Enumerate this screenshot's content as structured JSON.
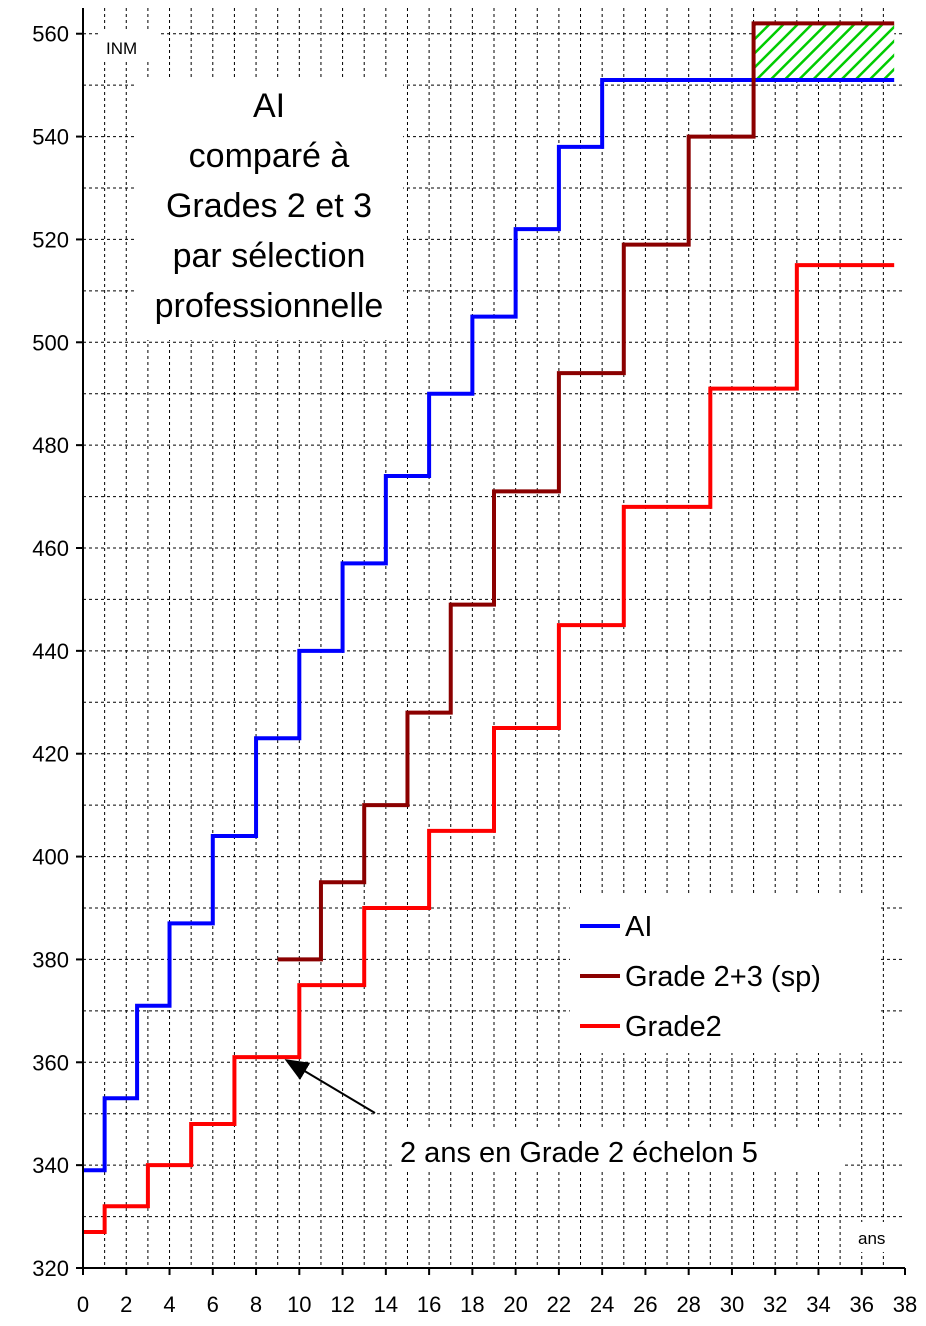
{
  "chart_data": {
    "type": "line",
    "step": true,
    "title_lines": [
      "AI",
      "comparé à",
      "Grades 2 et 3",
      "par sélection",
      "professionnelle"
    ],
    "ylabel": "INM",
    "xlabel": "ans",
    "xlim": [
      0,
      38
    ],
    "ylim": [
      320,
      565
    ],
    "x_ticks": [
      0,
      2,
      4,
      6,
      8,
      10,
      12,
      14,
      16,
      18,
      20,
      22,
      24,
      26,
      28,
      30,
      32,
      34,
      36,
      38
    ],
    "y_ticks": [
      320,
      340,
      360,
      380,
      400,
      420,
      440,
      460,
      480,
      500,
      520,
      540,
      560
    ],
    "grid": true,
    "legend_position": "lower-right",
    "series": [
      {
        "name": "AI",
        "color": "#0000ff",
        "x": [
          0,
          1,
          2.5,
          4,
          6,
          8,
          10,
          12,
          14,
          16,
          18,
          20,
          22,
          24,
          37.5
        ],
        "y": [
          339,
          353,
          371,
          387,
          404,
          423,
          440,
          457,
          474,
          490,
          505,
          522,
          538,
          551,
          551
        ]
      },
      {
        "name": "Grade 2+3 (sp)",
        "color": "#8b0000",
        "x": [
          9,
          11,
          13,
          15,
          17,
          19,
          22,
          25,
          28,
          31,
          37.5
        ],
        "y": [
          380,
          395,
          410,
          428,
          449,
          471,
          494,
          519,
          540,
          562,
          562
        ]
      },
      {
        "name": "Grade2",
        "color": "#ff0000",
        "x": [
          0,
          1,
          3,
          5,
          7,
          10,
          13,
          16,
          19,
          22,
          25,
          29,
          33,
          37.5
        ],
        "y": [
          327,
          332,
          340,
          348,
          361,
          375,
          390,
          405,
          425,
          445,
          468,
          491,
          515,
          515
        ]
      }
    ],
    "hatched_region": {
      "x": [
        31,
        37.5
      ],
      "y": [
        551,
        562
      ],
      "color": "#00cc00"
    },
    "annotation": {
      "text": "2 ans en Grade 2 échelon 5",
      "point_x": 9.2,
      "point_y": 361
    }
  }
}
